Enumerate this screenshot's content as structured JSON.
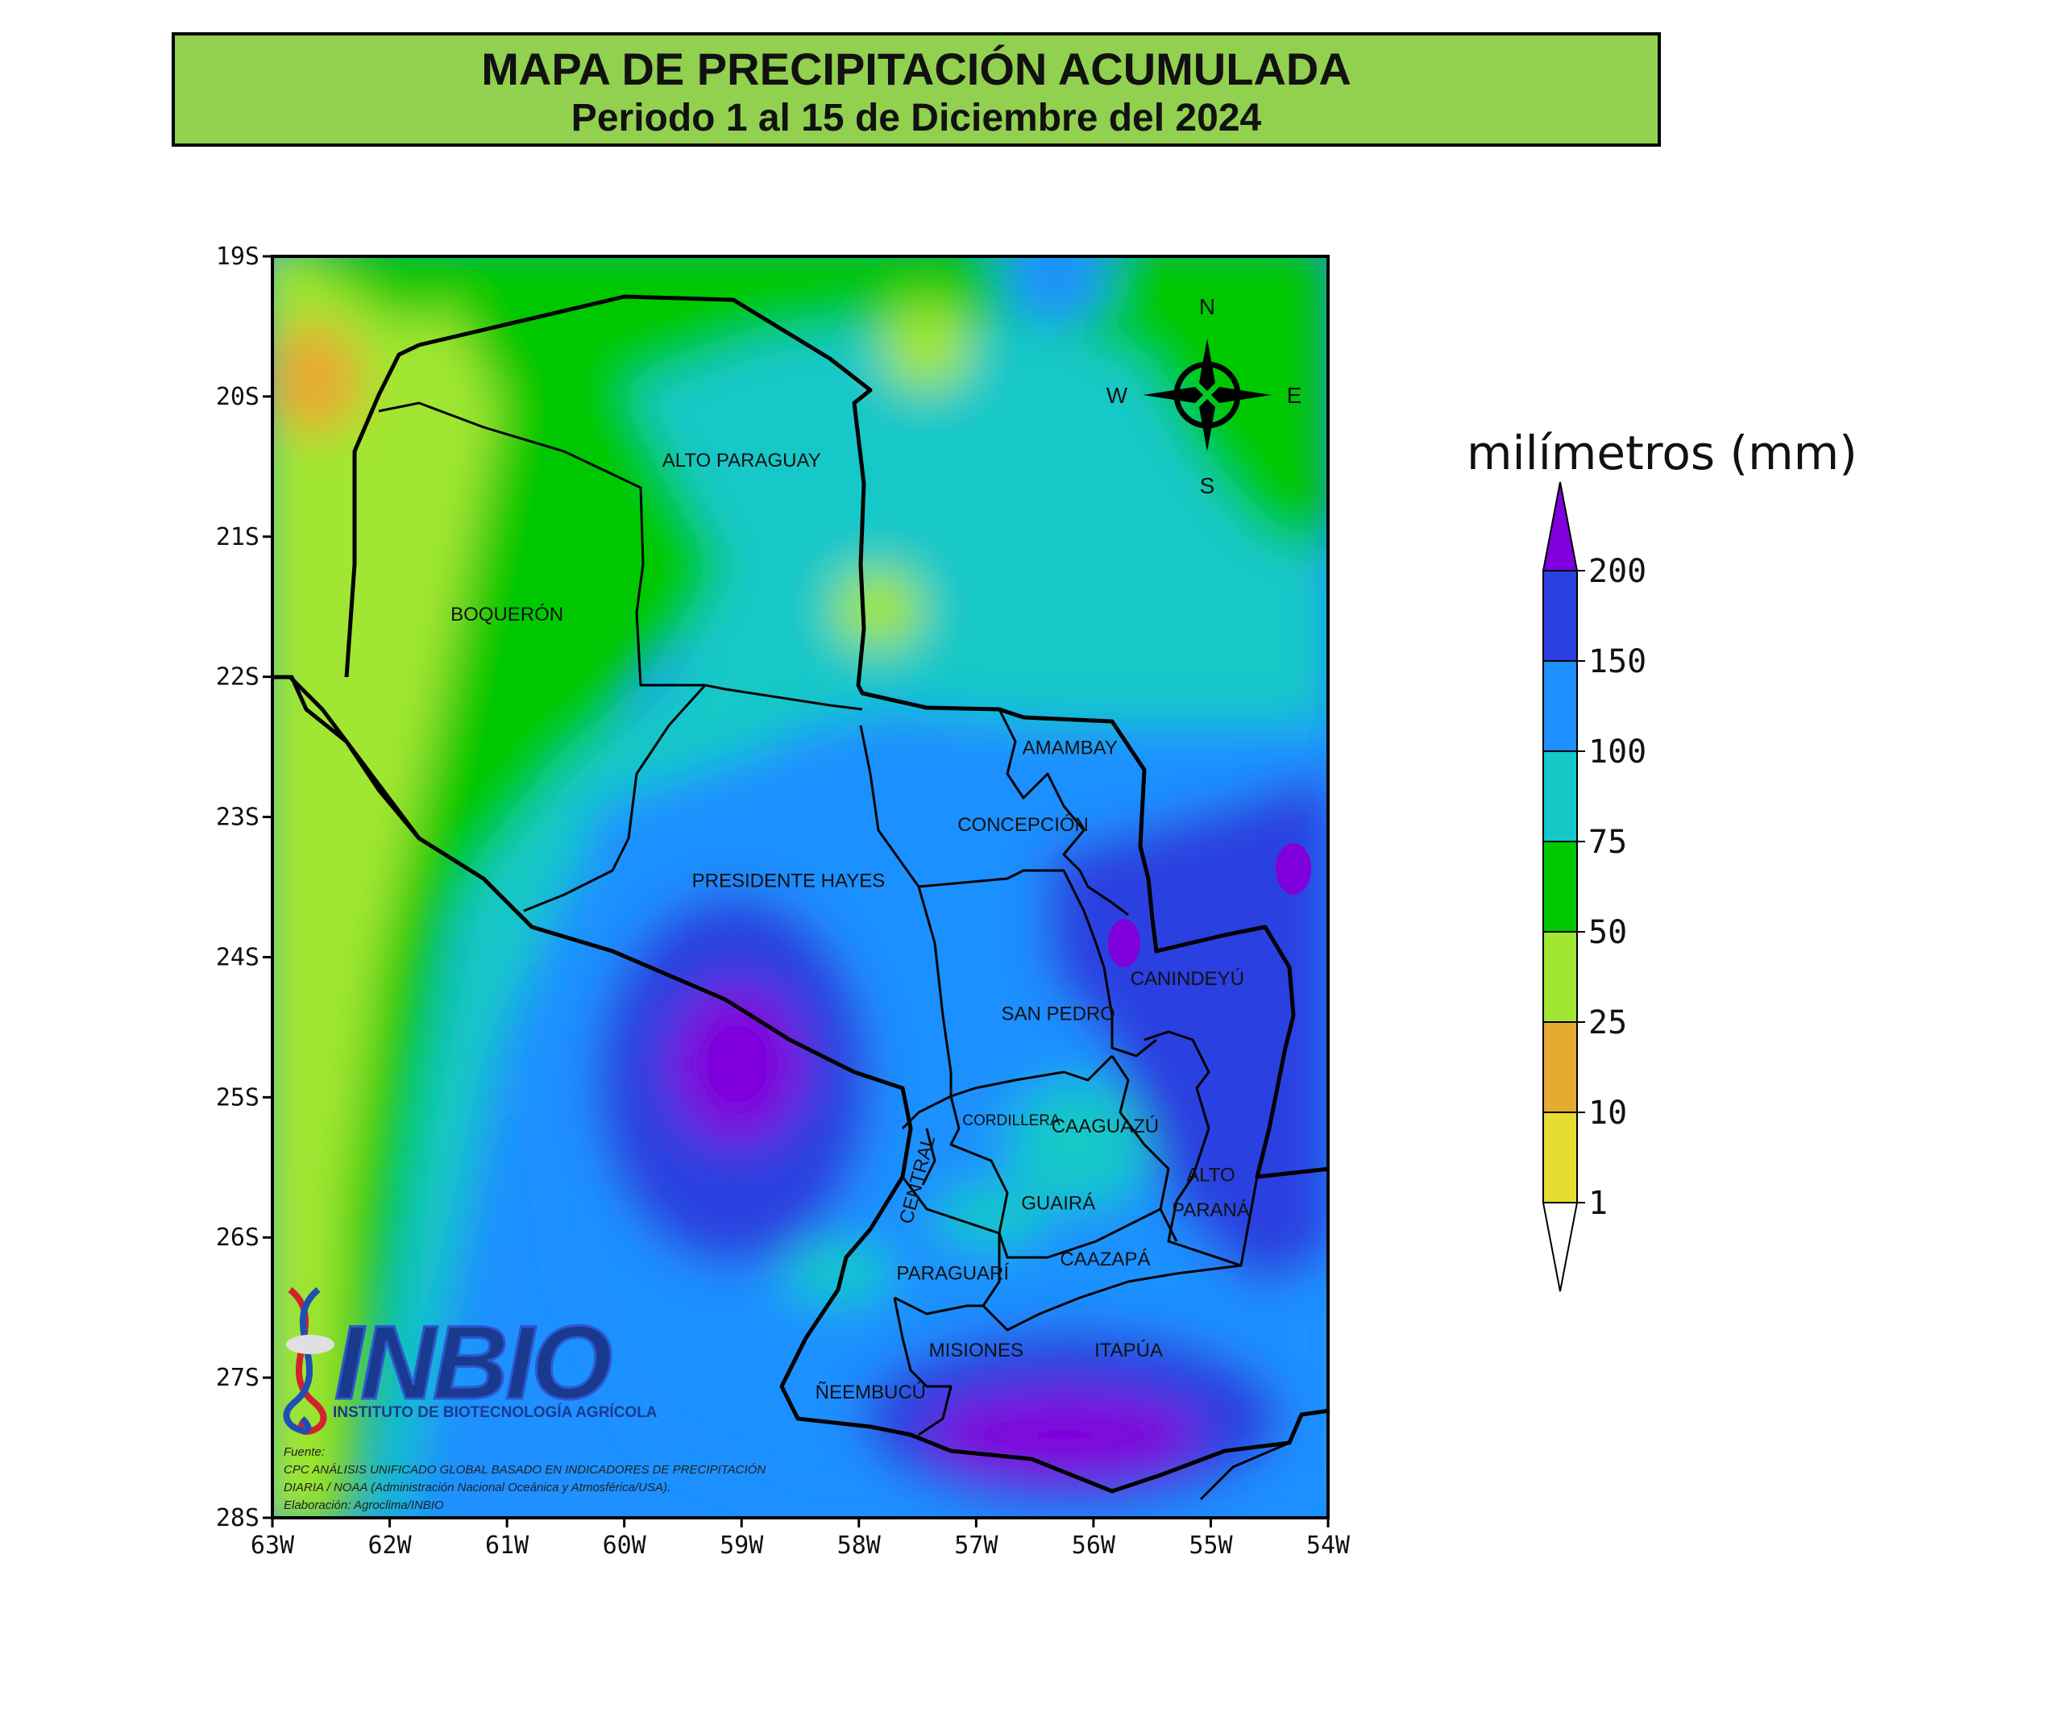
{
  "title": {
    "line1": "MAPA DE PRECIPITACIÓN ACUMULADA",
    "line2": "Periodo 1 al 15 de Diciembre del 2024"
  },
  "map": {
    "lat_ticks": [
      "19S",
      "20S",
      "21S",
      "22S",
      "23S",
      "24S",
      "25S",
      "26S",
      "27S",
      "28S"
    ],
    "lon_ticks": [
      "63W",
      "62W",
      "61W",
      "60W",
      "59W",
      "58W",
      "57W",
      "56W",
      "55W",
      "54W"
    ],
    "lat_range": [
      -28,
      -19
    ],
    "lon_range": [
      -63,
      -54
    ],
    "departments": [
      {
        "name": "ALTO PARAGUAY",
        "lon": -59.0,
        "lat": -20.5
      },
      {
        "name": "BOQUERÓN",
        "lon": -61.0,
        "lat": -21.6
      },
      {
        "name": "AMAMBAY",
        "lon": -56.2,
        "lat": -22.55
      },
      {
        "name": "CONCEPCIÓN",
        "lon": -56.6,
        "lat": -23.1
      },
      {
        "name": "PRESIDENTE HAYES",
        "lon": -58.6,
        "lat": -23.5
      },
      {
        "name": "SAN PEDRO",
        "lon": -56.3,
        "lat": -24.45
      },
      {
        "name": "CANINDEYÚ",
        "lon": -55.2,
        "lat": -24.2
      },
      {
        "name": "CORDILLERA",
        "lon": -56.7,
        "lat": -25.2
      },
      {
        "name": "CAAGUAZÚ",
        "lon": -55.9,
        "lat": -25.25
      },
      {
        "name": "ALTO",
        "lon": -55.0,
        "lat": -25.6
      },
      {
        "name": "PARANÁ",
        "lon": -55.0,
        "lat": -25.85
      },
      {
        "name": "GUAIRÁ",
        "lon": -56.3,
        "lat": -25.8
      },
      {
        "name": "CAAZAPÁ",
        "lon": -55.9,
        "lat": -26.2
      },
      {
        "name": "PARAGUARÍ",
        "lon": -57.2,
        "lat": -26.3
      },
      {
        "name": "MISIONES",
        "lon": -57.0,
        "lat": -26.85
      },
      {
        "name": "ITAPÚA",
        "lon": -55.7,
        "lat": -26.85
      },
      {
        "name": "ÑEEMBUCÚ",
        "lon": -57.9,
        "lat": -27.15
      },
      {
        "name": "CENTRAL",
        "lon": -57.45,
        "lat": -25.6
      }
    ],
    "compass": {
      "n": "N",
      "s": "S",
      "e": "E",
      "w": "W"
    }
  },
  "legend": {
    "unit": "milímetros (mm)",
    "ticks": [
      "200",
      "150",
      "100",
      "75",
      "50",
      "25",
      "10",
      "1"
    ],
    "colors": [
      "#7f00dc",
      "#2b3fe0",
      "#1e90ff",
      "#14c8c8",
      "#00c800",
      "#a0e632",
      "#e6aa32",
      "#e6dc32",
      "#ffffff"
    ]
  },
  "logo": {
    "name": "INBIO",
    "subtitle": "INSTITUTO DE BIOTECNOLOGÍA AGRÍCOLA"
  },
  "source": {
    "line1": "Fuente:",
    "line2": "CPC ANÁLISIS UNIFICADO GLOBAL BASADO EN INDICADORES DE PRECIPITACIÓN",
    "line3": "DIARIA / NOAA (Administración Nacional Oceánica y Atmosférica/USA).",
    "line4": "Elaboración: Agroclima/INBIO"
  }
}
